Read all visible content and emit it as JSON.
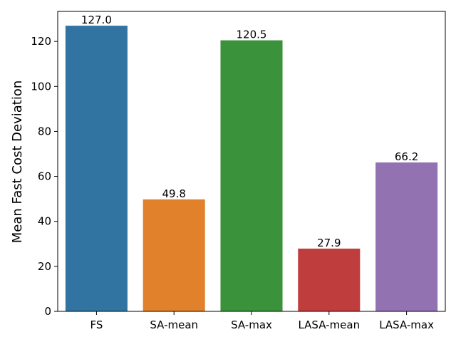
{
  "chart_data": {
    "type": "bar",
    "title": "",
    "xlabel": "",
    "ylabel": "Mean Fast Cost Deviation",
    "categories": [
      "FS",
      "SA-mean",
      "SA-max",
      "LASA-mean",
      "LASA-max"
    ],
    "values": [
      127.0,
      49.8,
      120.5,
      27.9,
      66.2
    ],
    "value_labels": [
      "127.0",
      "49.8",
      "120.5",
      "27.9",
      "66.2"
    ],
    "colors": [
      "#3274a1",
      "#e1812c",
      "#3a923a",
      "#c03d3e",
      "#9372b2"
    ],
    "ylim": [
      0,
      133.35
    ],
    "yticks": [
      0,
      20,
      40,
      60,
      80,
      100,
      120
    ],
    "grid": false,
    "legend": "none"
  }
}
